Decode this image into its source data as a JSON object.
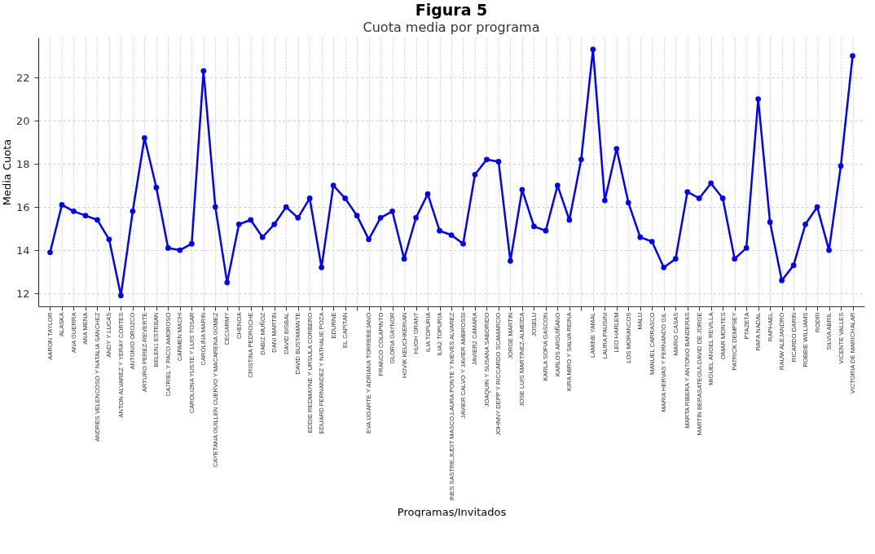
{
  "chart_data": {
    "type": "line",
    "title": "Figura 5",
    "subtitle": "Cuota media por programa",
    "xlabel": "Programas/Invitados",
    "ylabel": "Media Cuota",
    "categories": [
      "AARON TAYLOR",
      "ALASKA",
      "ANA GUERRA",
      "ANA MENA",
      "ANDRES VELENCOSO Y NATALIA SANCHEZ",
      "ANDY Y LUCAS",
      "ANTON ALVAREZ Y YERAY CORTES",
      "ANTONIO OROZCO",
      "ARTURO PEREZ-REVERTE",
      "BELEN1 ESTEBAN",
      "CA7RIEL Y PACO AMOROSO",
      "CARMEN MACHI",
      "CAROLI2NA YUSTE Y LUIS TOSAR",
      "CAROLINA MARIN",
      "CAYETANA GUILLEN CUERVO Y MACARENA GOMEZ",
      "CECIARMY",
      "CHENOA",
      "CRISTINA PEDROCHE",
      "DABIZ MUÑOZ",
      "DANI MARTIN",
      "DAVID BISBAL",
      "DAVID BUSTAMANTE",
      "EDDIE REDMAYNE Y URSULA CORBERO",
      "EDUARD FERNANDEZ Y NATHALIE POZA",
      "EDURNE",
      "EL CAPITAN",
      null,
      "EVA UGARTE Y ADRIANA TORREBEJANO",
      "FRANCO COLAPINTO",
      "GLORIA GAYNOR",
      "HOVIK KEUCHKERIAN",
      "HUGH GRANT",
      "ILIA TOPURIA",
      "ILIA2 TOPURIA",
      "INES SASTRE,JUDIT MASCO,LAURA PONTE Y NIEVES ALVAREZ",
      "JAVIER CALVO Y JAVIER AMBROSSI",
      "JAVIER2 CAMARA",
      "JOAQUIN Y SUSANA SABORIDO",
      "JOHNNY DEPP Y RICCARDO SCAMARCIO",
      "JORGE MARTIN",
      "JOSE LUIS MARTINEZ-ALMEIDA",
      "JOSELU",
      "KARLA SOFIA GASCON",
      "KARLOS ARGUIÑANO",
      "KIRA MIRO Y SALVA REINA",
      null,
      "LAMINE YAMAL",
      "LAURA PAUSINI",
      "LEO HARLEM",
      "LOS MORANCOS",
      "MALU",
      "MANUEL CARRASCO",
      "MARIA HERVAS Y FERNANDO GIL",
      "MARIO CASAS",
      "MARTA RIBERA Y ANTONIO BANDERAS",
      "MARTIN BERASATEGUI-DAVID DE JORGE",
      "MIGUEL ANGEL REVILLA",
      "OMAR MONTES",
      "PATRICK DEMPSEY",
      "PTAZETA",
      "RAFA NADAL",
      "RAPHAEL",
      "RAUW ALEJANDRO",
      "RICARDO DARIN",
      "ROBBIE WILLIAMS",
      "RODRI",
      "SILVIA ABRIL",
      "VICENTE VALLES",
      "VICTORIA DE MARICHALAR"
    ],
    "series": [
      {
        "color": "#0000ff",
        "values": [
          13.9,
          16.1,
          15.8,
          15.6,
          15.4,
          14.5,
          11.9,
          15.8,
          19.2,
          16.9,
          14.1,
          14.0,
          14.3,
          22.3,
          16.0,
          12.5,
          15.2,
          15.4,
          14.6,
          15.2,
          16.0,
          15.5,
          16.4,
          13.2,
          17.0,
          16.4,
          15.6,
          14.5,
          15.5,
          15.8,
          13.6,
          15.5,
          16.6,
          14.9,
          14.7,
          14.3,
          17.5,
          18.2,
          18.1,
          13.5,
          16.8,
          15.1,
          14.9,
          17.0,
          15.4,
          18.2,
          23.3,
          16.3,
          18.7,
          16.2,
          14.6,
          14.4,
          13.2,
          13.6,
          16.7,
          16.4,
          17.1,
          16.4,
          13.6,
          14.1,
          21.0,
          15.3,
          12.6,
          13.3,
          15.2,
          16.0,
          14.0,
          17.9,
          23.0
        ]
      }
    ],
    "ylim": [
      11.4,
      23.85
    ],
    "yticks": [
      12,
      14,
      16,
      18,
      20,
      22
    ],
    "grid": true,
    "marker": "circle",
    "line_style": "solid"
  }
}
